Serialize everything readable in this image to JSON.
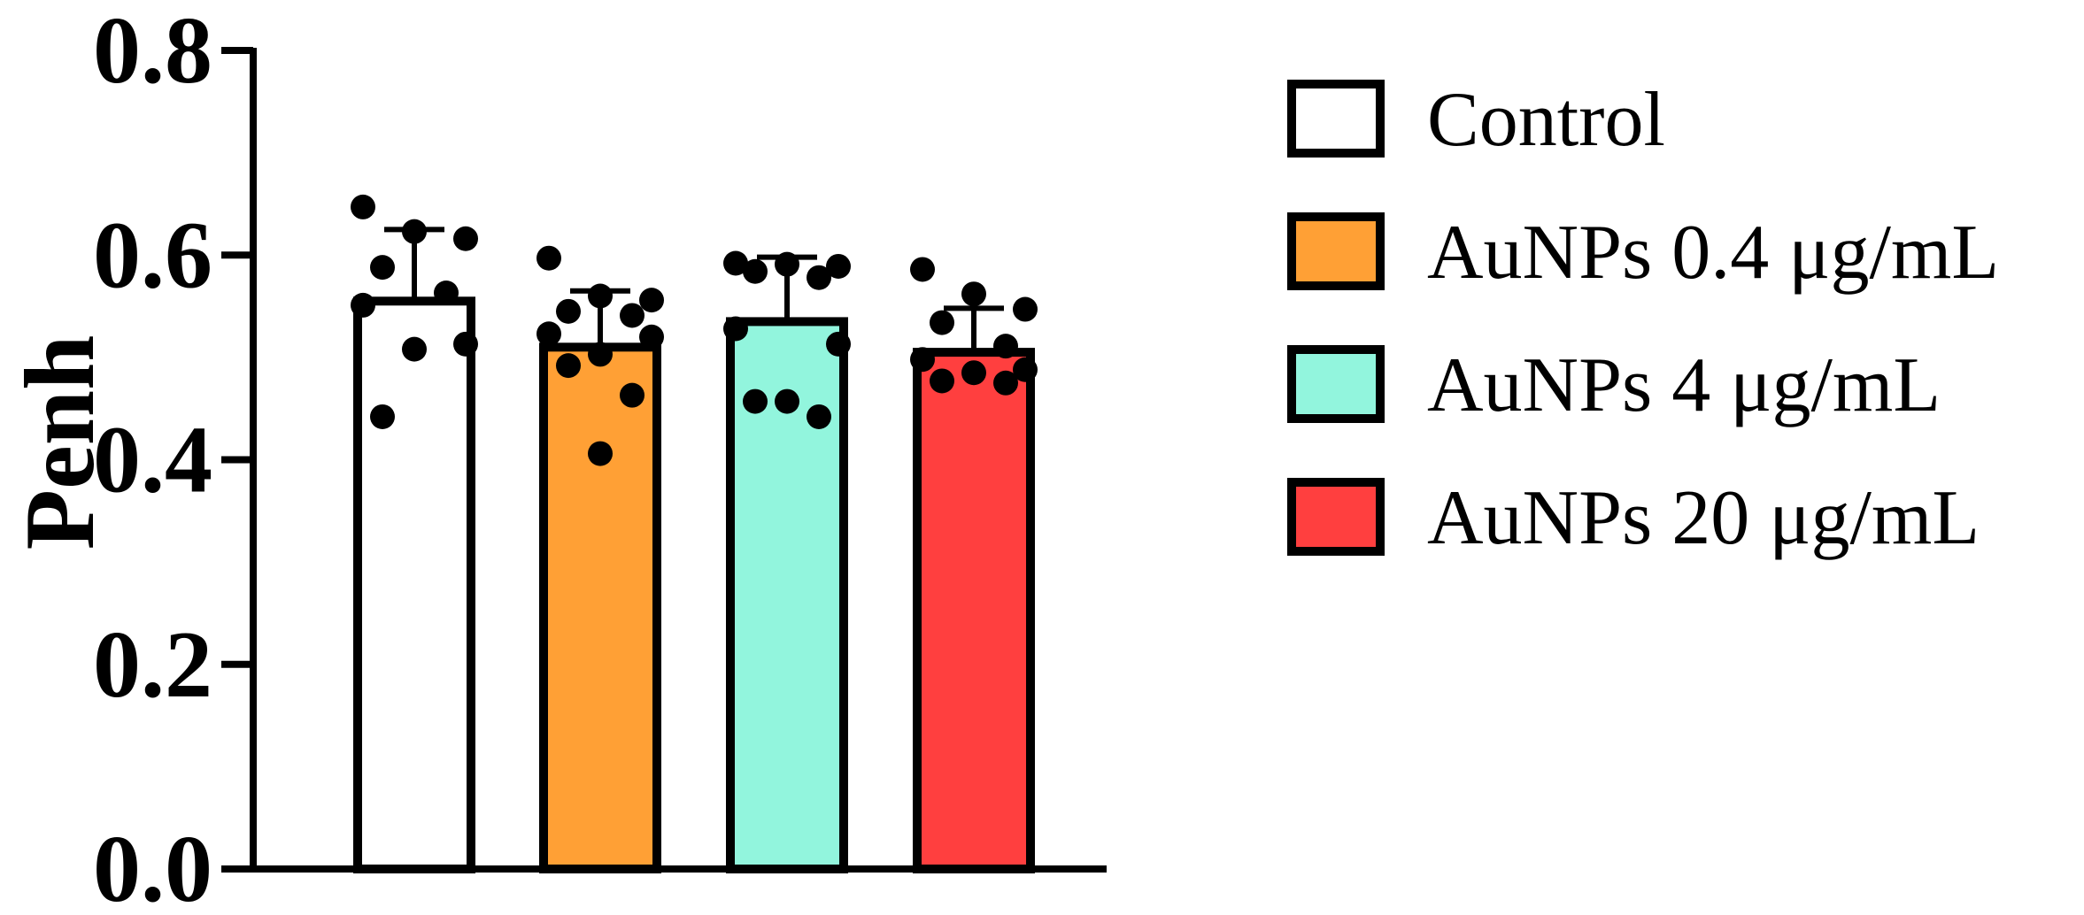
{
  "chart_data": {
    "type": "bar",
    "ylabel": "Penh",
    "xlabel": "",
    "ylim": [
      0,
      0.8
    ],
    "yticks": [
      "0.0",
      "0.2",
      "0.4",
      "0.6",
      "0.8"
    ],
    "series": [
      {
        "name": "Control",
        "color": "#ffffff",
        "mean": 0.555,
        "sd": 0.07,
        "points": [
          0.647,
          0.623,
          0.616,
          0.588,
          0.563,
          0.551,
          0.513,
          0.508,
          0.442
        ]
      },
      {
        "name": "AuNPs 0.4 μg/mL",
        "color": "#ffa035",
        "mean": 0.51,
        "sd": 0.055,
        "points": [
          0.597,
          0.56,
          0.556,
          0.545,
          0.541,
          0.523,
          0.52,
          0.503,
          0.492,
          0.463,
          0.406
        ]
      },
      {
        "name": "AuNPs 4 μg/mL",
        "color": "#92f5dd",
        "mean": 0.535,
        "sd": 0.063,
        "points": [
          0.592,
          0.591,
          0.589,
          0.584,
          0.578,
          0.528,
          0.513,
          0.457,
          0.457,
          0.442
        ]
      },
      {
        "name": "AuNPs 20 μg/mL",
        "color": "#ff3f3f",
        "mean": 0.505,
        "sd": 0.043,
        "points": [
          0.586,
          0.562,
          0.547,
          0.534,
          0.511,
          0.498,
          0.488,
          0.485,
          0.477,
          0.475
        ]
      }
    ],
    "legend_position": "right"
  }
}
